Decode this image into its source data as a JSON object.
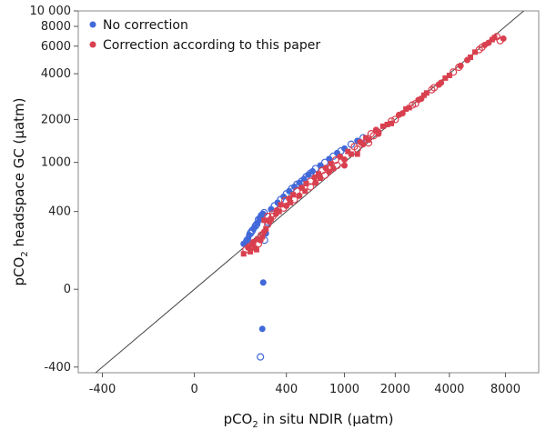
{
  "chart_data": {
    "type": "scatter",
    "title": "",
    "xlabel": {
      "prefix": "pCO",
      "sub": "2",
      "suffix": " in situ NDIR (µatm)"
    },
    "ylabel": {
      "prefix": "pCO",
      "sub": "2",
      "suffix": " headspace GC (µatm)"
    },
    "scale": "symmetric-log",
    "xlim": [
      -600,
      12000
    ],
    "ylim": [
      -450,
      10000
    ],
    "x_ticks": [
      {
        "value": -400,
        "label": "-400"
      },
      {
        "value": 0,
        "label": "0"
      },
      {
        "value": 400,
        "label": "400"
      },
      {
        "value": 1000,
        "label": "1000"
      },
      {
        "value": 2000,
        "label": "2000"
      },
      {
        "value": 4000,
        "label": "4000"
      },
      {
        "value": 8000,
        "label": "8000"
      }
    ],
    "y_ticks": [
      {
        "value": -400,
        "label": "-400"
      },
      {
        "value": 0,
        "label": "0"
      },
      {
        "value": 400,
        "label": "400"
      },
      {
        "value": 1000,
        "label": "1000"
      },
      {
        "value": 2000,
        "label": "2000"
      },
      {
        "value": 4000,
        "label": "4000"
      },
      {
        "value": 6000,
        "label": "6000"
      },
      {
        "value": 8000,
        "label": "8000"
      },
      {
        "value": 10000,
        "label": "10 000"
      }
    ],
    "reference_line": "1:1",
    "legend_position": "top-left",
    "series": [
      {
        "name": "No correction",
        "color": "#4169d9",
        "markers": [
          "filled-circle",
          "open-circle"
        ],
        "points": [
          [
            160,
            180
          ],
          [
            175,
            200
          ],
          [
            185,
            230
          ],
          [
            195,
            250
          ],
          [
            205,
            270
          ],
          [
            215,
            290
          ],
          [
            225,
            310
          ],
          [
            230,
            335
          ],
          [
            240,
            355
          ],
          [
            250,
            372
          ],
          [
            180,
            210
          ],
          [
            200,
            260
          ],
          [
            210,
            280
          ],
          [
            220,
            300
          ],
          [
            235,
            340
          ],
          [
            190,
            240
          ],
          [
            170,
            190
          ],
          [
            245,
            365
          ],
          [
            255,
            380
          ],
          [
            260,
            390
          ],
          [
            300,
            420
          ],
          [
            320,
            450
          ],
          [
            340,
            480
          ],
          [
            360,
            510
          ],
          [
            380,
            540
          ],
          [
            400,
            570
          ],
          [
            420,
            600
          ],
          [
            440,
            630
          ],
          [
            460,
            650
          ],
          [
            480,
            680
          ],
          [
            500,
            700
          ],
          [
            520,
            720
          ],
          [
            540,
            750
          ],
          [
            560,
            780
          ],
          [
            580,
            810
          ],
          [
            600,
            830
          ],
          [
            620,
            860
          ],
          [
            650,
            900
          ],
          [
            700,
            950
          ],
          [
            750,
            1000
          ],
          [
            800,
            1060
          ],
          [
            850,
            1110
          ],
          [
            900,
            1170
          ],
          [
            950,
            1210
          ],
          [
            1000,
            1260
          ],
          [
            1100,
            1350
          ],
          [
            1200,
            1430
          ],
          [
            1300,
            1500
          ],
          [
            250,
            -150
          ],
          [
            240,
            -320
          ],
          [
            255,
            20
          ],
          [
            262,
            200
          ],
          [
            270,
            240
          ],
          [
            282,
            315
          ]
        ]
      },
      {
        "name": "Correction according to this paper",
        "color": "#d9404f",
        "markers": [
          "filled-circle",
          "filled-square",
          "open-circle"
        ],
        "points": [
          [
            160,
            130
          ],
          [
            170,
            150
          ],
          [
            180,
            160
          ],
          [
            190,
            140
          ],
          [
            200,
            170
          ],
          [
            210,
            160
          ],
          [
            220,
            150
          ],
          [
            230,
            180
          ],
          [
            240,
            200
          ],
          [
            250,
            220
          ],
          [
            185,
            165
          ],
          [
            205,
            190
          ],
          [
            225,
            205
          ],
          [
            245,
            230
          ],
          [
            260,
            250
          ],
          [
            270,
            270
          ],
          [
            280,
            300
          ],
          [
            290,
            320
          ],
          [
            300,
            340
          ],
          [
            310,
            360
          ],
          [
            330,
            380
          ],
          [
            350,
            400
          ],
          [
            380,
            430
          ],
          [
            400,
            450
          ],
          [
            430,
            480
          ],
          [
            460,
            510
          ],
          [
            500,
            550
          ],
          [
            550,
            600
          ],
          [
            600,
            650
          ],
          [
            650,
            700
          ],
          [
            700,
            760
          ],
          [
            750,
            800
          ],
          [
            800,
            850
          ],
          [
            850,
            900
          ],
          [
            900,
            950
          ],
          [
            1000,
            1050
          ],
          [
            1100,
            1150
          ],
          [
            1200,
            1250
          ],
          [
            1300,
            1350
          ],
          [
            1400,
            1450
          ],
          [
            1500,
            1550
          ],
          [
            1600,
            1650
          ],
          [
            1800,
            1850
          ],
          [
            2000,
            2000
          ],
          [
            2200,
            2200
          ],
          [
            2400,
            2400
          ],
          [
            2600,
            2550
          ],
          [
            2800,
            2750
          ],
          [
            3000,
            3000
          ],
          [
            3300,
            3250
          ],
          [
            3600,
            3500
          ],
          [
            4000,
            3900
          ],
          [
            4500,
            4400
          ],
          [
            5000,
            4900
          ],
          [
            5500,
            5500
          ],
          [
            6000,
            5900
          ],
          [
            6500,
            6300
          ],
          [
            7000,
            6800
          ],
          [
            7500,
            6500
          ],
          [
            7800,
            6700
          ],
          [
            290,
            330
          ],
          [
            310,
            380
          ],
          [
            335,
            410
          ],
          [
            360,
            460
          ],
          [
            390,
            500
          ],
          [
            420,
            520
          ],
          [
            450,
            560
          ],
          [
            480,
            600
          ],
          [
            520,
            640
          ],
          [
            560,
            690
          ],
          [
            600,
            720
          ],
          [
            640,
            770
          ],
          [
            680,
            820
          ],
          [
            720,
            870
          ],
          [
            760,
            910
          ],
          [
            820,
            980
          ],
          [
            880,
            1040
          ],
          [
            940,
            1100
          ],
          [
            1050,
            1200
          ],
          [
            1150,
            1300
          ],
          [
            1250,
            1400
          ],
          [
            1350,
            1500
          ],
          [
            1450,
            1600
          ],
          [
            1550,
            1700
          ],
          [
            1700,
            1800
          ],
          [
            1900,
            1950
          ],
          [
            2100,
            2150
          ],
          [
            2300,
            2350
          ],
          [
            2500,
            2500
          ],
          [
            2700,
            2700
          ],
          [
            2900,
            2900
          ],
          [
            3200,
            3150
          ],
          [
            3500,
            3400
          ],
          [
            3800,
            3750
          ],
          [
            4200,
            4100
          ],
          [
            4600,
            4500
          ],
          [
            5200,
            5100
          ],
          [
            5800,
            5700
          ],
          [
            6200,
            6100
          ],
          [
            6800,
            6600
          ],
          [
            7200,
            6900
          ],
          [
            200,
            180
          ],
          [
            260,
            330
          ],
          [
            280,
            360
          ],
          [
            1000,
            950
          ],
          [
            1200,
            1150
          ],
          [
            1400,
            1380
          ],
          [
            1600,
            1600
          ],
          [
            1900,
            1880
          ]
        ]
      }
    ]
  }
}
